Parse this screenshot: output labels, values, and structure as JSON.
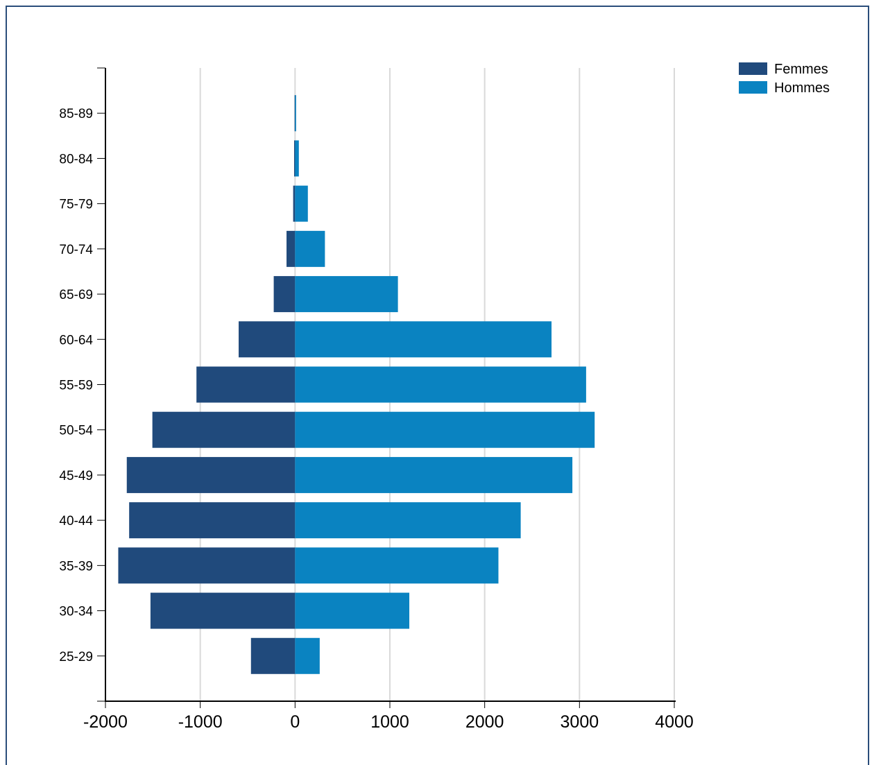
{
  "chart_data": {
    "type": "bar",
    "orientation": "horizontal",
    "stacked": true,
    "title": "",
    "xlabel": "",
    "ylabel": "",
    "categories": [
      "25-29",
      "30-34",
      "35-39",
      "40-44",
      "45-49",
      "50-54",
      "55-59",
      "60-64",
      "65-69",
      "70-74",
      "75-79",
      "80-84",
      "85-89"
    ],
    "series": [
      {
        "name": "Femmes",
        "color": "#204a7c",
        "values": [
          -465,
          -1525,
          -1865,
          -1750,
          -1775,
          -1505,
          -1040,
          -595,
          -225,
          -90,
          -20,
          -10,
          -5
        ]
      },
      {
        "name": "Hommes",
        "color": "#0a83c1",
        "values": [
          260,
          1205,
          2145,
          2380,
          2925,
          3160,
          3070,
          2705,
          1085,
          315,
          135,
          40,
          5
        ]
      }
    ],
    "xlim": [
      -2000,
      4000
    ],
    "xticks": [
      "-2000",
      "-1000",
      "0",
      "1000",
      "2000",
      "3000",
      "4000"
    ],
    "xtick_values": [
      -2000,
      -1000,
      0,
      1000,
      2000,
      3000,
      4000
    ],
    "grid": true,
    "legend_position": "top-right"
  }
}
